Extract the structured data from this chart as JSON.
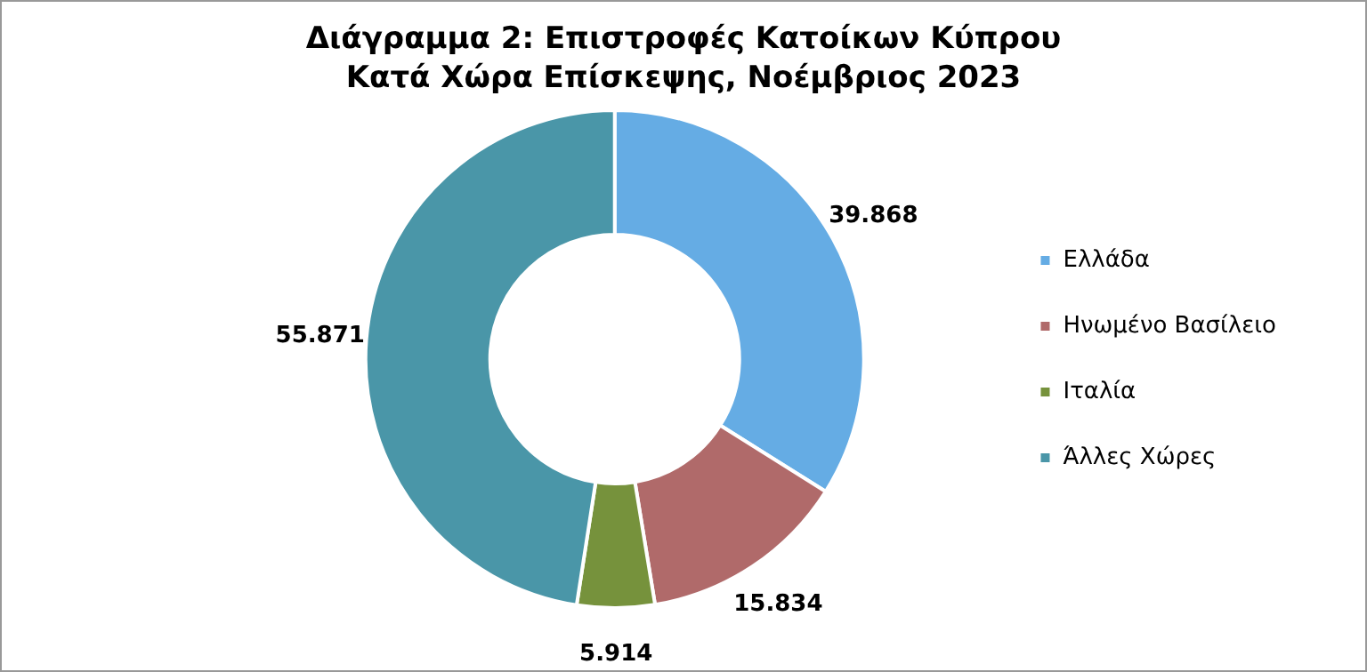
{
  "chart_data": {
    "type": "donut",
    "title": "Διάγραμμα 2: Επιστροφές Κατοίκων Κύπρου Κατά Χώρα Επίσκεψης, Νοέμβριος 2023",
    "categories": [
      "Ελλάδα",
      "Ηνωμένο Βασίλειο",
      "Ιταλία",
      "Άλλες Χώρες"
    ],
    "values": [
      39868,
      15834,
      5914,
      55871
    ],
    "value_labels": [
      "39.868",
      "15.834",
      "5.914",
      "55.871"
    ],
    "colors": [
      "#65ace4",
      "#b06a6a",
      "#76923c",
      "#4a96a8"
    ],
    "legend": "right"
  }
}
